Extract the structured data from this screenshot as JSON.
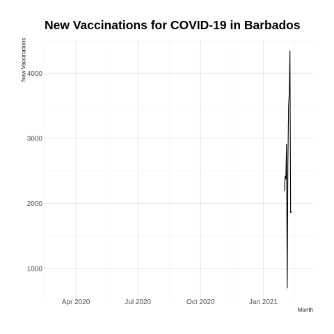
{
  "chart_data": {
    "type": "line",
    "title": "New Vaccinations for COVID-19 in Barbados",
    "xlabel": "Month",
    "ylabel": "New Vaccinations",
    "x_axis_type": "date",
    "xlim": [
      "2020-02-15",
      "2021-03-15"
    ],
    "ylim": [
      560,
      4510
    ],
    "x_ticks": [
      {
        "date": "2020-04-01",
        "label": "Apr 2020"
      },
      {
        "date": "2020-07-01",
        "label": "Jul 2020"
      },
      {
        "date": "2020-10-01",
        "label": "Oct 2020"
      },
      {
        "date": "2021-01-01",
        "label": "Jan 2021"
      }
    ],
    "y_ticks": [
      1000,
      2000,
      3000,
      4000
    ],
    "grid": true,
    "legend": "none",
    "line_color": "#000000",
    "series": [
      {
        "x": [
          "2021-02-01",
          "2021-02-02",
          "2021-02-03",
          "2021-02-04",
          "2021-02-05",
          "2021-02-06",
          "2021-02-07",
          "2021-02-08",
          "2021-02-09",
          "2021-02-10",
          "2021-02-11",
          "2021-02-12"
        ],
        "values": [
          2190,
          2420,
          2380,
          2910,
          700,
          2600,
          3500,
          3700,
          4350,
          1860,
          1870,
          1870
        ]
      }
    ]
  }
}
